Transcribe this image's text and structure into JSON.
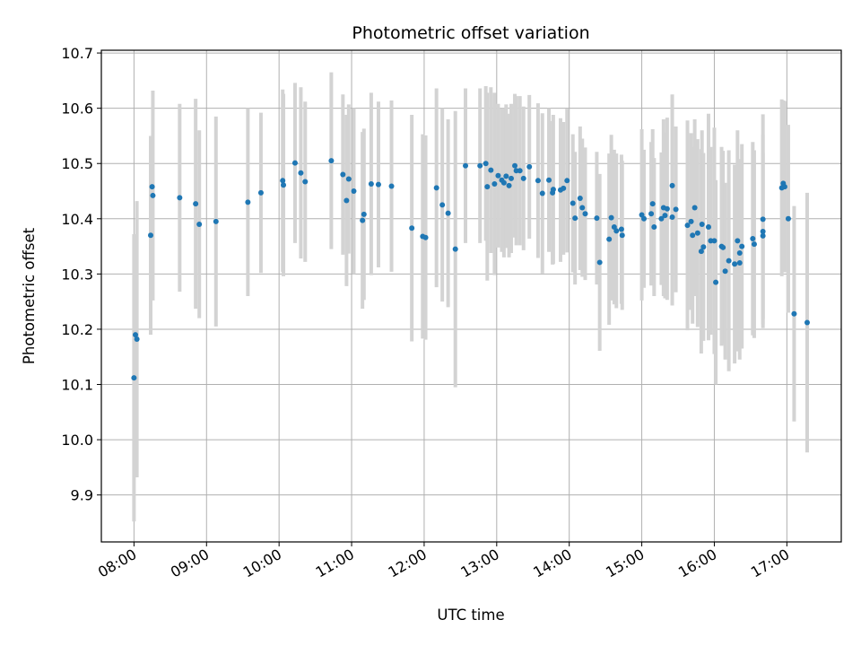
{
  "chart_data": {
    "type": "scatter",
    "title": "Photometric offset variation",
    "xlabel": "UTC time",
    "ylabel": "Photometric offset",
    "x_tick_labels": [
      "08:00",
      "09:00",
      "10:00",
      "11:00",
      "12:00",
      "13:00",
      "14:00",
      "15:00",
      "16:00",
      "17:00"
    ],
    "x_tick_hours": [
      8,
      9,
      10,
      11,
      12,
      13,
      14,
      15,
      16,
      17
    ],
    "y_ticks": [
      9.9,
      10.0,
      10.1,
      10.2,
      10.3,
      10.4,
      10.5,
      10.6,
      10.7
    ],
    "y_tick_labels": [
      "9.9",
      "10.0",
      "10.1",
      "10.2",
      "10.3",
      "10.4",
      "10.5",
      "10.6",
      "10.7"
    ],
    "xlim_hours": [
      7.55,
      17.75
    ],
    "ylim": [
      9.815,
      10.705
    ],
    "grid": true,
    "point_color": "#1f77b4",
    "errorbar_color": "#d3d3d3",
    "series": [
      {
        "x_hours": [
          8.0,
          8.02,
          8.04,
          8.23,
          8.25,
          8.26,
          8.63,
          8.85,
          8.9,
          9.13,
          9.57,
          9.75,
          10.05,
          10.06,
          10.22,
          10.3,
          10.36,
          10.72,
          10.88,
          10.93,
          10.96,
          11.03,
          11.15,
          11.17,
          11.27,
          11.37,
          11.55,
          11.83,
          11.98,
          12.02,
          12.17,
          12.25,
          12.33,
          12.43,
          12.57,
          12.77,
          12.85,
          12.87,
          12.92,
          12.97,
          13.02,
          13.07,
          13.1,
          13.13,
          13.17,
          13.2,
          13.25,
          13.27,
          13.32,
          13.37,
          13.45,
          13.57,
          13.63,
          13.72,
          13.77,
          13.78,
          13.88,
          13.92,
          13.97,
          14.05,
          14.08,
          14.15,
          14.18,
          14.22,
          14.38,
          14.42,
          14.55,
          14.58,
          14.62,
          14.65,
          14.72,
          14.73,
          15.0,
          15.03,
          15.13,
          15.15,
          15.17,
          15.27,
          15.3,
          15.32,
          15.35,
          15.42,
          15.42,
          15.47,
          15.63,
          15.68,
          15.7,
          15.73,
          15.77,
          15.82,
          15.83,
          15.85,
          15.92,
          15.95,
          16.0,
          16.02,
          16.1,
          16.12,
          16.15,
          16.2,
          16.28,
          16.32,
          16.35,
          16.35,
          16.38,
          16.53,
          16.55,
          16.67,
          16.67,
          16.67,
          16.93,
          16.95,
          16.97,
          17.02,
          17.1,
          17.28
        ],
        "y": [
          10.112,
          10.19,
          10.182,
          10.37,
          10.458,
          10.442,
          10.438,
          10.427,
          10.39,
          10.395,
          10.43,
          10.447,
          10.469,
          10.461,
          10.501,
          10.483,
          10.467,
          10.505,
          10.48,
          10.433,
          10.472,
          10.45,
          10.397,
          10.408,
          10.463,
          10.462,
          10.459,
          10.383,
          10.368,
          10.366,
          10.456,
          10.425,
          10.41,
          10.345,
          10.496,
          10.496,
          10.5,
          10.458,
          10.488,
          10.463,
          10.478,
          10.47,
          10.465,
          10.477,
          10.46,
          10.473,
          10.496,
          10.487,
          10.487,
          10.473,
          10.494,
          10.469,
          10.446,
          10.47,
          10.447,
          10.453,
          10.452,
          10.455,
          10.469,
          10.428,
          10.401,
          10.437,
          10.42,
          10.409,
          10.401,
          10.321,
          10.363,
          10.402,
          10.385,
          10.378,
          10.381,
          10.37,
          10.407,
          10.4,
          10.409,
          10.427,
          10.385,
          10.4,
          10.42,
          10.406,
          10.418,
          10.46,
          10.403,
          10.417,
          10.388,
          10.395,
          10.37,
          10.42,
          10.374,
          10.341,
          10.39,
          10.349,
          10.385,
          10.36,
          10.36,
          10.285,
          10.35,
          10.348,
          10.305,
          10.324,
          10.318,
          10.36,
          10.32,
          10.338,
          10.35,
          10.364,
          10.354,
          10.399,
          10.377,
          10.369,
          10.456,
          10.464,
          10.458,
          10.4,
          10.228,
          10.212
        ],
        "err": [
          0.26,
          0.18,
          0.25,
          0.18,
          0.09,
          0.19,
          0.17,
          0.19,
          0.17,
          0.19,
          0.17,
          0.145,
          0.165,
          0.165,
          0.145,
          0.155,
          0.145,
          0.16,
          0.145,
          0.155,
          0.135,
          0.15,
          0.16,
          0.155,
          0.165,
          0.15,
          0.155,
          0.205,
          0.185,
          0.185,
          0.18,
          0.175,
          0.17,
          0.25,
          0.14,
          0.14,
          0.14,
          0.17,
          0.15,
          0.165,
          0.13,
          0.13,
          0.135,
          0.13,
          0.13,
          0.135,
          0.13,
          0.135,
          0.135,
          0.13,
          0.13,
          0.14,
          0.145,
          0.13,
          0.13,
          0.135,
          0.13,
          0.12,
          0.13,
          0.125,
          0.12,
          0.13,
          0.125,
          0.12,
          0.12,
          0.16,
          0.155,
          0.15,
          0.14,
          0.14,
          0.135,
          0.135,
          0.155,
          0.125,
          0.13,
          0.135,
          0.125,
          0.12,
          0.16,
          0.15,
          0.165,
          0.165,
          0.16,
          0.15,
          0.19,
          0.16,
          0.16,
          0.16,
          0.17,
          0.185,
          0.17,
          0.17,
          0.205,
          0.17,
          0.205,
          0.185,
          0.18,
          0.175,
          0.16,
          0.2,
          0.18,
          0.2,
          0.175,
          0.17,
          0.185,
          0.175,
          0.17,
          0.19,
          0.175,
          0.15,
          0.16,
          0.15,
          0.155,
          0.17,
          0.195,
          0.235
        ]
      }
    ]
  }
}
